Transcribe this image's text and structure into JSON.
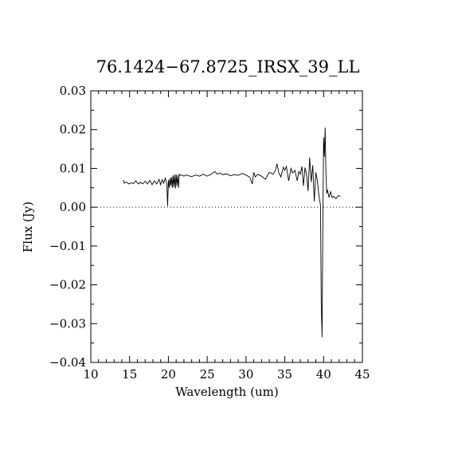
{
  "chart_data": {
    "type": "line",
    "title": "76.1424−67.8725_IRSX_39_LL",
    "xlabel": "Wavelength (um)",
    "ylabel": "Flux (Jy)",
    "xlim": [
      10,
      45
    ],
    "ylim": [
      -0.04,
      0.03
    ],
    "xticks": [
      10,
      15,
      20,
      25,
      30,
      35,
      40,
      45
    ],
    "xtick_labels": [
      "10",
      "15",
      "20",
      "25",
      "30",
      "35",
      "40",
      "45"
    ],
    "yticks": [
      -0.04,
      -0.03,
      -0.02,
      -0.01,
      0.0,
      0.01,
      0.02,
      0.03
    ],
    "ytick_labels": [
      "−0.04",
      "−0.03",
      "−0.02",
      "−0.01",
      "0.00",
      "0.01",
      "0.02",
      "0.03"
    ],
    "zero_line": "dotted",
    "grid": false,
    "series": [
      {
        "color": "#000000",
        "x": [
          14.2,
          14.3,
          14.6,
          14.9,
          15.2,
          15.5,
          15.8,
          16.1,
          16.4,
          16.7,
          17.0,
          17.3,
          17.6,
          17.9,
          18.2,
          18.5,
          18.8,
          19.0,
          19.2,
          19.4,
          19.6,
          19.8,
          19.9,
          20.0,
          20.1,
          20.2,
          20.3,
          20.4,
          20.5,
          20.6,
          20.7,
          20.8,
          20.9,
          21.0,
          21.1,
          21.2,
          21.3,
          21.4,
          21.5,
          21.7,
          22.0,
          22.3,
          22.6,
          23.0,
          23.5,
          24.0,
          24.5,
          25.0,
          25.5,
          26.0,
          26.3,
          26.6,
          27.0,
          27.5,
          28.0,
          28.5,
          29.0,
          29.5,
          30.0,
          30.5,
          30.8,
          31.0,
          31.2,
          31.5,
          32.0,
          32.5,
          33.0,
          33.5,
          33.8,
          34.0,
          34.2,
          34.5,
          34.8,
          35.0,
          35.2,
          35.5,
          35.8,
          36.0,
          36.3,
          36.6,
          36.8,
          37.0,
          37.2,
          37.4,
          37.6,
          37.8,
          38.0,
          38.2,
          38.4,
          38.6,
          38.8,
          39.0,
          39.2,
          39.4,
          39.6,
          39.7,
          39.8,
          39.9,
          40.0,
          40.1,
          40.2,
          40.3,
          40.4,
          40.5,
          40.7,
          40.9,
          41.1,
          41.3,
          41.6,
          41.9,
          42.2
        ],
        "y": [
          0.007,
          0.0062,
          0.0065,
          0.006,
          0.0063,
          0.0061,
          0.0068,
          0.006,
          0.0064,
          0.006,
          0.0067,
          0.006,
          0.0069,
          0.0058,
          0.0068,
          0.006,
          0.0072,
          0.0058,
          0.0071,
          0.0062,
          0.0075,
          0.006,
          0.0003,
          0.007,
          0.005,
          0.0075,
          0.0055,
          0.0078,
          0.005,
          0.0082,
          0.0052,
          0.0084,
          0.0048,
          0.0085,
          0.0055,
          0.0082,
          0.005,
          0.0085,
          0.0082,
          0.0083,
          0.008,
          0.0083,
          0.0081,
          0.0079,
          0.0083,
          0.008,
          0.0085,
          0.008,
          0.0085,
          0.0092,
          0.0085,
          0.0088,
          0.0084,
          0.0086,
          0.0081,
          0.0084,
          0.0082,
          0.0087,
          0.0083,
          0.0077,
          0.006,
          0.009,
          0.0078,
          0.0085,
          0.008,
          0.0072,
          0.009,
          0.0085,
          0.0095,
          0.0112,
          0.009,
          0.0078,
          0.0103,
          0.0095,
          0.0105,
          0.0068,
          0.01,
          0.0088,
          0.0095,
          0.0068,
          0.0092,
          0.0085,
          0.0105,
          0.0055,
          0.0102,
          0.0085,
          0.0042,
          0.0128,
          0.0065,
          0.0108,
          0.0015,
          0.009,
          0.0068,
          0.003,
          0.0005,
          -0.025,
          -0.0335,
          -0.005,
          0.018,
          0.013,
          0.0205,
          0.009,
          0.0035,
          0.0045,
          0.0025,
          0.004,
          0.0025,
          0.0028,
          0.0022,
          0.003,
          0.0028
        ]
      }
    ]
  }
}
